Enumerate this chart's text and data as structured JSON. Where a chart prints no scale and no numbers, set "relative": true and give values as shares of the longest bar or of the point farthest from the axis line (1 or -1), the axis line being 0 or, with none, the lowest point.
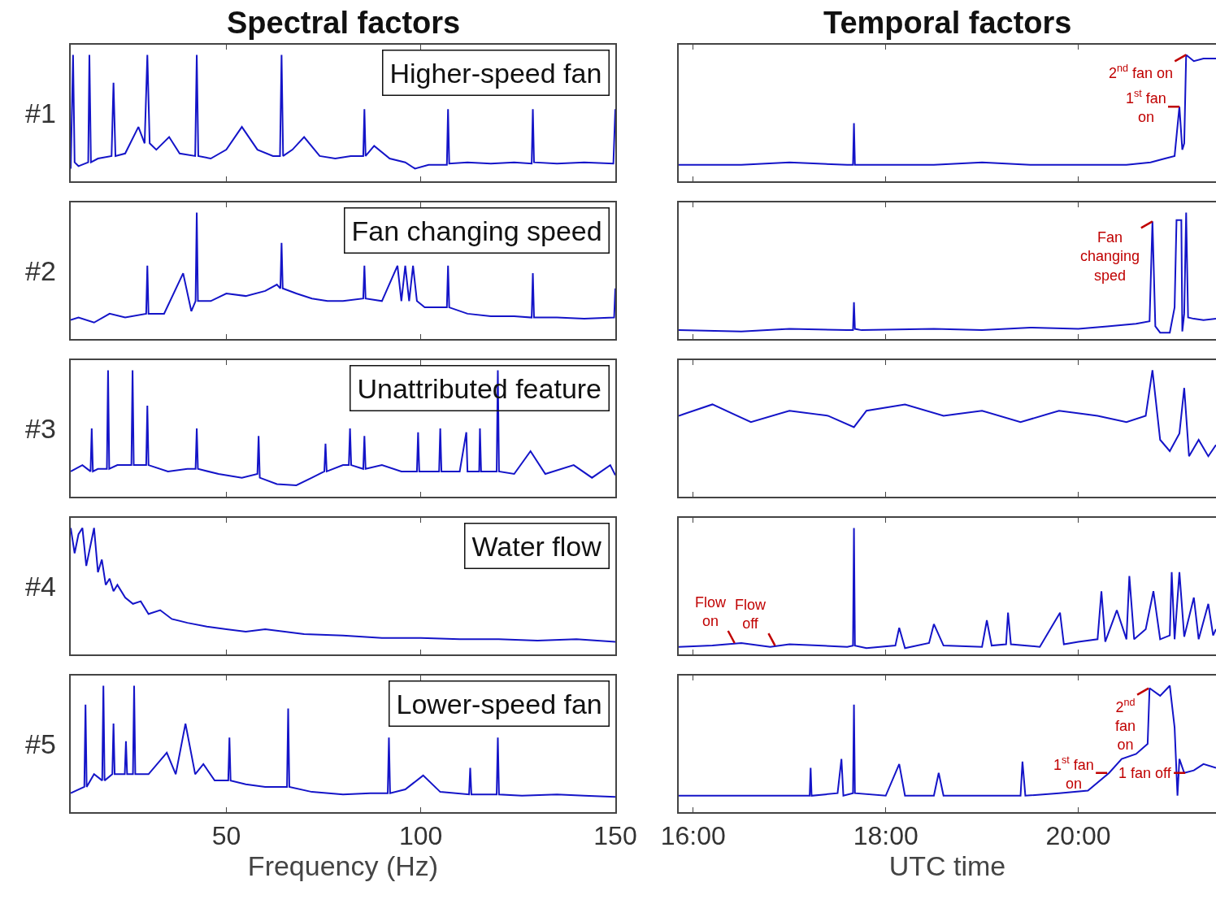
{
  "chart_data": [
    {
      "type": "line",
      "title": "Spectral factors",
      "ylabel": "#1",
      "relative": true,
      "color": "#1414c8",
      "xlim": [
        10,
        150
      ],
      "xticks": [
        50,
        100,
        150
      ],
      "tick_labels": false,
      "annotations": [
        "Higher-speed fan"
      ],
      "x": [
        10,
        10.6,
        11,
        12,
        14.5,
        14.8,
        15.2,
        17,
        20.5,
        21,
        21.5,
        24,
        27.4,
        29,
        29.7,
        30.3,
        32,
        35.3,
        38,
        42,
        42.4,
        42.8,
        46,
        50,
        54,
        58,
        62,
        63.8,
        64.2,
        64.6,
        67,
        70,
        74,
        78,
        82,
        85.2,
        85.5,
        85.8,
        88,
        92,
        96,
        98.5,
        102,
        106.7,
        107,
        107.3,
        112,
        118,
        124,
        128.5,
        128.8,
        129.1,
        135,
        142,
        149.5,
        150
      ],
      "values": [
        0.1,
        1,
        0.15,
        0.12,
        0.15,
        1,
        0.15,
        0.18,
        0.2,
        0.78,
        0.2,
        0.22,
        0.43,
        0.3,
        1,
        0.3,
        0.25,
        0.35,
        0.22,
        0.2,
        1,
        0.2,
        0.18,
        0.25,
        0.43,
        0.25,
        0.2,
        0.2,
        1,
        0.2,
        0.25,
        0.35,
        0.2,
        0.18,
        0.2,
        0.2,
        0.57,
        0.2,
        0.28,
        0.18,
        0.15,
        0.1,
        0.13,
        0.13,
        0.57,
        0.14,
        0.15,
        0.14,
        0.15,
        0.14,
        0.57,
        0.15,
        0.14,
        0.15,
        0.14,
        0.57
      ]
    },
    {
      "type": "line",
      "title": "Temporal factors",
      "relative": true,
      "color": "#1414c8",
      "xlim": [
        15.85,
        21.43
      ],
      "xticks": [
        16,
        18,
        20
      ],
      "tick_labels": false,
      "annotations": [
        {
          "text": "1$^{st}$ fan\non",
          "x": 21.05,
          "y": 0.59
        },
        {
          "text": "2$^{nd}$ fan on",
          "x": 21.12,
          "y": 1
        }
      ],
      "x": [
        15.85,
        16.5,
        17,
        17.6,
        17.66,
        17.67,
        17.68,
        17.75,
        18.5,
        19,
        19.5,
        20,
        20.5,
        20.75,
        20.9,
        21.0,
        21.05,
        21.08,
        21.1,
        21.12,
        21.2,
        21.3,
        21.43
      ],
      "values": [
        0.13,
        0.13,
        0.15,
        0.13,
        0.13,
        0.46,
        0.13,
        0.13,
        0.13,
        0.15,
        0.13,
        0.13,
        0.13,
        0.15,
        0.18,
        0.2,
        0.59,
        0.25,
        0.3,
        1,
        0.95,
        0.97,
        0.97
      ]
    },
    {
      "type": "line",
      "ylabel": "#2",
      "relative": true,
      "color": "#1414c8",
      "xlim": [
        10,
        150
      ],
      "xticks": [
        50,
        100,
        150
      ],
      "tick_labels": false,
      "annotations": [
        "Fan changing speed"
      ],
      "x": [
        10,
        12,
        16,
        20,
        24,
        29.4,
        29.7,
        30,
        34,
        38.9,
        41,
        42.1,
        42.4,
        42.7,
        46,
        50,
        55,
        60,
        63,
        63.9,
        64.2,
        64.5,
        68,
        72,
        76,
        80,
        85.2,
        85.5,
        85.8,
        90,
        94,
        95,
        96,
        97,
        98,
        99,
        101,
        104,
        106.7,
        107,
        107.3,
        112,
        118,
        124,
        128.5,
        128.8,
        129.1,
        135,
        142,
        149.7,
        150
      ],
      "values": [
        0.15,
        0.17,
        0.13,
        0.2,
        0.17,
        0.2,
        0.58,
        0.2,
        0.2,
        0.52,
        0.22,
        0.3,
        1,
        0.3,
        0.3,
        0.36,
        0.34,
        0.38,
        0.43,
        0.4,
        0.76,
        0.4,
        0.36,
        0.32,
        0.3,
        0.3,
        0.32,
        0.58,
        0.32,
        0.3,
        0.58,
        0.3,
        0.58,
        0.3,
        0.58,
        0.3,
        0.25,
        0.25,
        0.25,
        0.58,
        0.25,
        0.2,
        0.18,
        0.18,
        0.17,
        0.52,
        0.17,
        0.17,
        0.16,
        0.17,
        0.4
      ]
    },
    {
      "type": "line",
      "relative": true,
      "color": "#1414c8",
      "xlim": [
        15.85,
        21.43
      ],
      "xticks": [
        16,
        18,
        20
      ],
      "tick_labels": false,
      "annotations": [
        {
          "text": "Fan\nchanging\nsped",
          "x": 20.77,
          "y": 0.93
        }
      ],
      "x": [
        15.85,
        16.5,
        17,
        17.6,
        17.66,
        17.67,
        17.68,
        17.75,
        18.5,
        19,
        19.5,
        20,
        20.3,
        20.6,
        20.74,
        20.77,
        20.8,
        20.85,
        20.95,
        21.0,
        21.02,
        21.07,
        21.08,
        21.1,
        21.12,
        21.14,
        21.2,
        21.3,
        21.43
      ],
      "values": [
        0.07,
        0.06,
        0.08,
        0.07,
        0.07,
        0.29,
        0.08,
        0.07,
        0.08,
        0.07,
        0.09,
        0.08,
        0.1,
        0.12,
        0.14,
        0.93,
        0.1,
        0.05,
        0.05,
        0.25,
        0.94,
        0.94,
        0.06,
        0.2,
        1,
        0.17,
        0.16,
        0.15,
        0.16
      ]
    },
    {
      "type": "line",
      "ylabel": "#3",
      "relative": true,
      "color": "#1414c8",
      "xlim": [
        10,
        150
      ],
      "xticks": [
        50,
        100,
        150
      ],
      "tick_labels": false,
      "annotations": [
        "Unattributed feature"
      ],
      "x": [
        10,
        13,
        15.1,
        15.4,
        15.7,
        17,
        19.3,
        19.6,
        19.9,
        22,
        25.6,
        25.9,
        26.2,
        29.4,
        29.7,
        30,
        35,
        40,
        42.1,
        42.4,
        42.7,
        48,
        54,
        58,
        58.3,
        58.6,
        63,
        68,
        72,
        75.2,
        75.5,
        75.8,
        80,
        81.5,
        81.8,
        82.1,
        85.2,
        85.5,
        85.8,
        90,
        95,
        99,
        99.3,
        99.6,
        104.7,
        105,
        105.3,
        110,
        111.7,
        112,
        115,
        115.2,
        115.5,
        119.5,
        119.8,
        120.1,
        124,
        128.2,
        132,
        139.3,
        144,
        148.7,
        150
      ],
      "values": [
        0.2,
        0.25,
        0.2,
        0.54,
        0.2,
        0.22,
        0.22,
        1,
        0.22,
        0.25,
        0.25,
        1,
        0.25,
        0.25,
        0.72,
        0.25,
        0.2,
        0.22,
        0.22,
        0.54,
        0.22,
        0.18,
        0.15,
        0.18,
        0.48,
        0.15,
        0.1,
        0.09,
        0.15,
        0.2,
        0.42,
        0.2,
        0.25,
        0.25,
        0.54,
        0.25,
        0.22,
        0.48,
        0.22,
        0.25,
        0.2,
        0.2,
        0.51,
        0.2,
        0.2,
        0.54,
        0.2,
        0.2,
        0.51,
        0.2,
        0.2,
        0.54,
        0.2,
        0.2,
        1,
        0.2,
        0.18,
        0.36,
        0.18,
        0.25,
        0.15,
        0.25,
        0.17
      ]
    },
    {
      "type": "line",
      "relative": true,
      "color": "#1414c8",
      "xlim": [
        15.85,
        21.43
      ],
      "xticks": [
        16,
        18,
        20
      ],
      "tick_labels": false,
      "x": [
        15.85,
        16.2,
        16.6,
        17,
        17.4,
        17.67,
        17.8,
        18.2,
        18.6,
        19,
        19.4,
        19.8,
        20.2,
        20.5,
        20.7,
        20.77,
        20.85,
        20.95,
        21.05,
        21.1,
        21.15,
        21.25,
        21.35,
        21.43
      ],
      "values": [
        0.64,
        0.73,
        0.59,
        0.68,
        0.64,
        0.55,
        0.68,
        0.73,
        0.64,
        0.68,
        0.59,
        0.68,
        0.64,
        0.59,
        0.64,
        1,
        0.45,
        0.36,
        0.5,
        0.86,
        0.32,
        0.45,
        0.32,
        0.41
      ]
    },
    {
      "type": "line",
      "ylabel": "#4",
      "relative": true,
      "color": "#1414c8",
      "xlim": [
        10,
        150
      ],
      "xticks": [
        50,
        100,
        150
      ],
      "tick_labels": false,
      "annotations": [
        "Water flow"
      ],
      "x": [
        10,
        11,
        12,
        13,
        14,
        15,
        16,
        17,
        18,
        19,
        20,
        21,
        22,
        24,
        26,
        28,
        30,
        33,
        36,
        40,
        45,
        50,
        55,
        60,
        70,
        80,
        90,
        100,
        110,
        120,
        130,
        140,
        150
      ],
      "values": [
        1,
        0.8,
        0.95,
        1,
        0.7,
        0.85,
        1,
        0.65,
        0.75,
        0.55,
        0.6,
        0.5,
        0.55,
        0.45,
        0.4,
        0.42,
        0.32,
        0.35,
        0.28,
        0.25,
        0.22,
        0.2,
        0.18,
        0.2,
        0.16,
        0.15,
        0.13,
        0.13,
        0.12,
        0.12,
        0.11,
        0.12,
        0.1
      ]
    },
    {
      "type": "line",
      "relative": true,
      "color": "#1414c8",
      "xlim": [
        15.85,
        21.43
      ],
      "xticks": [
        16,
        18,
        20
      ],
      "tick_labels": false,
      "annotations": [
        {
          "text": "Flow\non",
          "x": 16.43,
          "y": 0.09
        },
        {
          "text": "Flow\noff",
          "x": 16.85,
          "y": 0.07
        }
      ],
      "x": [
        15.85,
        16.2,
        16.5,
        16.8,
        17.0,
        17.3,
        17.6,
        17.66,
        17.67,
        17.68,
        17.8,
        18.1,
        18.14,
        18.2,
        18.45,
        18.5,
        18.6,
        19.0,
        19.05,
        19.1,
        19.25,
        19.27,
        19.3,
        19.6,
        19.81,
        19.85,
        20.0,
        20.2,
        20.24,
        20.28,
        20.4,
        20.5,
        20.53,
        20.58,
        20.7,
        20.78,
        20.85,
        20.95,
        20.97,
        21.0,
        21.05,
        21.1,
        21.2,
        21.25,
        21.35,
        21.4,
        21.43
      ],
      "values": [
        0.06,
        0.07,
        0.09,
        0.06,
        0.08,
        0.07,
        0.06,
        0.07,
        1,
        0.07,
        0.05,
        0.07,
        0.21,
        0.05,
        0.09,
        0.24,
        0.07,
        0.06,
        0.27,
        0.07,
        0.08,
        0.33,
        0.08,
        0.06,
        0.33,
        0.08,
        0.1,
        0.12,
        0.5,
        0.1,
        0.35,
        0.12,
        0.62,
        0.12,
        0.2,
        0.5,
        0.12,
        0.15,
        0.65,
        0.12,
        0.65,
        0.14,
        0.45,
        0.12,
        0.4,
        0.15,
        0.2
      ]
    },
    {
      "type": "line",
      "ylabel": "#5",
      "xlabel": "Frequency (Hz)",
      "relative": true,
      "color": "#1414c8",
      "xlim": [
        10,
        150
      ],
      "xticks": [
        50,
        100,
        150
      ],
      "annotations": [
        "Lower-speed fan"
      ],
      "x": [
        10,
        13.5,
        13.8,
        14.1,
        16,
        18.1,
        18.4,
        18.7,
        20.7,
        21,
        21.3,
        23.9,
        24.2,
        24.5,
        26,
        26.3,
        26.6,
        30,
        34.7,
        37,
        39.5,
        42,
        44.1,
        47,
        50.5,
        50.8,
        51.1,
        55,
        60,
        65.6,
        65.9,
        66.2,
        72,
        80,
        87,
        91.5,
        91.8,
        92.1,
        96,
        100.6,
        105,
        112.4,
        112.7,
        113,
        119.5,
        119.8,
        120.1,
        126,
        135,
        142,
        150
      ],
      "values": [
        0.15,
        0.2,
        0.85,
        0.2,
        0.3,
        0.25,
        1,
        0.25,
        0.3,
        0.7,
        0.3,
        0.3,
        0.56,
        0.3,
        0.3,
        1,
        0.3,
        0.3,
        0.47,
        0.3,
        0.7,
        0.3,
        0.38,
        0.25,
        0.25,
        0.59,
        0.25,
        0.22,
        0.2,
        0.2,
        0.82,
        0.2,
        0.16,
        0.14,
        0.15,
        0.15,
        0.59,
        0.15,
        0.18,
        0.29,
        0.16,
        0.14,
        0.35,
        0.14,
        0.14,
        0.59,
        0.14,
        0.13,
        0.14,
        0.13,
        0.12
      ]
    },
    {
      "type": "line",
      "xlabel": "UTC time",
      "relative": true,
      "color": "#1414c8",
      "xlim": [
        15.85,
        21.43
      ],
      "xticks": [
        {
          "value": 16,
          "label": "16:00"
        },
        {
          "value": 18,
          "label": "18:00"
        },
        {
          "value": 20,
          "label": "20:00"
        }
      ],
      "annotations": [
        {
          "text": "1$^{st}$ fan\non",
          "x": 20.3,
          "y": 0.31
        },
        {
          "text": "2$^{nd}$\nfan\non",
          "x": 20.73,
          "y": 0.98
        },
        {
          "text": "1 fan off",
          "x": 21.11,
          "y": 0.31
        }
      ],
      "x": [
        15.85,
        16.5,
        17.0,
        17.21,
        17.22,
        17.23,
        17.5,
        17.54,
        17.56,
        17.66,
        17.67,
        17.68,
        18.0,
        18.14,
        18.2,
        18.5,
        18.55,
        18.6,
        19.0,
        19.4,
        19.42,
        19.45,
        19.8,
        20.1,
        20.32,
        20.45,
        20.6,
        20.72,
        20.74,
        20.85,
        20.95,
        21.0,
        21.03,
        21.05,
        21.1,
        21.2,
        21.3,
        21.43
      ],
      "values": [
        0.13,
        0.13,
        0.13,
        0.13,
        0.35,
        0.13,
        0.15,
        0.42,
        0.13,
        0.15,
        0.85,
        0.15,
        0.13,
        0.38,
        0.13,
        0.13,
        0.31,
        0.13,
        0.13,
        0.13,
        0.4,
        0.13,
        0.15,
        0.17,
        0.31,
        0.42,
        0.46,
        0.54,
        0.98,
        0.92,
        1,
        0.67,
        0.13,
        0.42,
        0.31,
        0.33,
        0.38,
        0.35
      ]
    }
  ]
}
